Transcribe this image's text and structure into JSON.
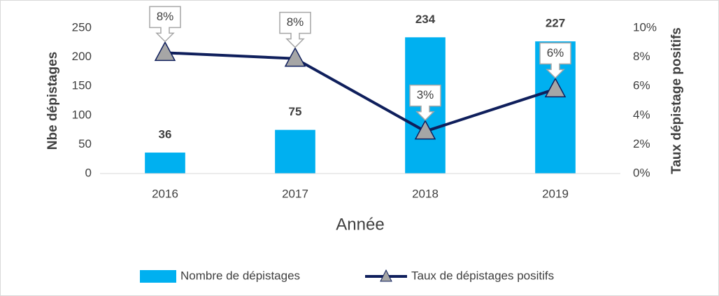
{
  "chart_data": {
    "type": "bar",
    "categories": [
      "2016",
      "2017",
      "2018",
      "2019"
    ],
    "x_label": "Année",
    "y_label": "Nbe dépistages",
    "y2_label": "Taux dépistage positifs",
    "ylim": [
      0,
      250
    ],
    "yticks": [
      0,
      50,
      100,
      150,
      200,
      250
    ],
    "y2lim": [
      0,
      10
    ],
    "y2ticks": [
      {
        "value": 0,
        "label": "0%"
      },
      {
        "value": 2,
        "label": "2%"
      },
      {
        "value": 4,
        "label": "4%"
      },
      {
        "value": 6,
        "label": "6%"
      },
      {
        "value": 8,
        "label": "8%"
      },
      {
        "value": 10,
        "label": "10%"
      }
    ],
    "grid": false,
    "legend": "bottom",
    "series": [
      {
        "name": "Nombre de dépistages",
        "type": "bar",
        "color": "#00b0f0",
        "values": [
          36,
          75,
          234,
          227
        ]
      },
      {
        "name": "Taux de dépistages positifs",
        "type": "line",
        "axis": "y2",
        "color": "#0f1f5c",
        "marker_color": "#a6a6a6",
        "values": [
          8.3,
          7.9,
          2.9,
          5.8
        ],
        "value_labels": [
          "8%",
          "8%",
          "3%",
          "6%"
        ]
      }
    ]
  }
}
